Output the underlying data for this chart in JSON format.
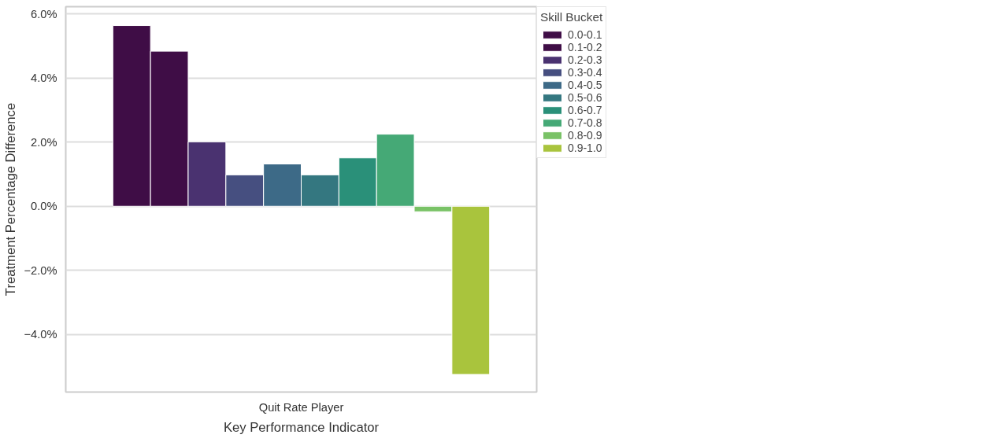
{
  "chart_data": {
    "type": "bar",
    "xlabel": "Key Performance Indicator",
    "ylabel": "Treatment Percentage Difference",
    "legend_title": "Skill Bucket",
    "categories": [
      "Quit Rate Player"
    ],
    "series": [
      {
        "name": "0.0-0.1",
        "color": "#3f0d46",
        "values": [
          5.64
        ]
      },
      {
        "name": "0.1-0.2",
        "color": "#3f0d46",
        "values": [
          4.84
        ]
      },
      {
        "name": "0.2-0.3",
        "color": "#4a3270",
        "values": [
          2.01
        ]
      },
      {
        "name": "0.3-0.4",
        "color": "#464f80",
        "values": [
          0.98
        ]
      },
      {
        "name": "0.4-0.5",
        "color": "#3d6a87",
        "values": [
          1.32
        ]
      },
      {
        "name": "0.5-0.6",
        "color": "#347780",
        "values": [
          0.98
        ]
      },
      {
        "name": "0.6-0.7",
        "color": "#2a9079",
        "values": [
          1.51
        ]
      },
      {
        "name": "0.7-0.8",
        "color": "#45a976",
        "values": [
          2.25
        ]
      },
      {
        "name": "0.8-0.9",
        "color": "#79c266",
        "values": [
          -0.17
        ]
      },
      {
        "name": "0.9-1.0",
        "color": "#a9c43d",
        "values": [
          -5.25
        ]
      }
    ],
    "ylim": [
      -5.8,
      6.23
    ],
    "yticks": [
      {
        "value": -4,
        "label": "−4.0%"
      },
      {
        "value": -2,
        "label": "−2.0%"
      },
      {
        "value": 0,
        "label": "0.0%"
      },
      {
        "value": 2,
        "label": "2.0%"
      },
      {
        "value": 4,
        "label": "4.0%"
      },
      {
        "value": 6,
        "label": "6.0%"
      }
    ],
    "grid": "y",
    "legend": "top right"
  }
}
